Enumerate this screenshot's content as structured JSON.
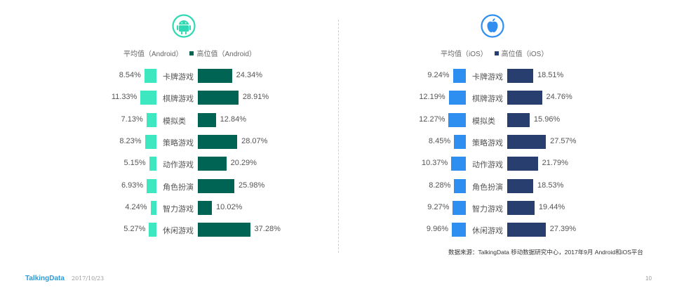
{
  "chart_data": [
    {
      "type": "bar",
      "platform": "Android",
      "categories": [
        "卡牌游戏",
        "棋牌游戏",
        "模拟类",
        "策略游戏",
        "动作游戏",
        "角色扮演",
        "智力游戏",
        "休闲游戏"
      ],
      "series": [
        {
          "name": "平均值（Android）",
          "color": "#3de8c0",
          "values": [
            8.54,
            11.33,
            7.13,
            8.23,
            5.15,
            6.93,
            4.24,
            5.27
          ],
          "labels": [
            "8.54%",
            "11.33%",
            "7.13%",
            "8.23%",
            "5.15%",
            "6.93%",
            "4.24%",
            "5.27%"
          ]
        },
        {
          "name": "高位值（Android）",
          "color": "#006455",
          "values": [
            24.34,
            28.91,
            12.84,
            28.07,
            20.29,
            25.98,
            10.02,
            37.28
          ],
          "labels": [
            "24.34%",
            "28.91%",
            "12.84%",
            "28.07%",
            "20.29%",
            "25.98%",
            "10.02%",
            "37.28%"
          ]
        }
      ],
      "icon": "android-icon",
      "icon_color": "#2fd9b3"
    },
    {
      "type": "bar",
      "platform": "iOS",
      "categories": [
        "卡牌游戏",
        "棋牌游戏",
        "模拟类",
        "策略游戏",
        "动作游戏",
        "角色扮演",
        "智力游戏",
        "休闲游戏"
      ],
      "series": [
        {
          "name": "平均值（iOS）",
          "color": "#2e8ff0",
          "values": [
            9.24,
            12.19,
            12.27,
            8.45,
            10.37,
            8.28,
            9.27,
            9.96
          ],
          "labels": [
            "9.24%",
            "12.19%",
            "12.27%",
            "8.45%",
            "10.37%",
            "8.28%",
            "9.27%",
            "9.96%"
          ]
        },
        {
          "name": "高位值（iOS）",
          "color": "#283e6e",
          "values": [
            18.51,
            24.76,
            15.96,
            27.57,
            21.79,
            18.53,
            19.44,
            27.39
          ],
          "labels": [
            "18.51%",
            "24.76%",
            "15.96%",
            "27.57%",
            "21.79%",
            "18.53%",
            "19.44%",
            "27.39%"
          ]
        }
      ],
      "icon": "apple-icon",
      "icon_color": "#2e8ff0"
    }
  ],
  "source": "数据来源：TalkingData 移动数据研究中心，2017年9月 Android和iOS平台",
  "footer": {
    "brand": "TalkingData",
    "date": "2017/10/23",
    "page": "10"
  }
}
